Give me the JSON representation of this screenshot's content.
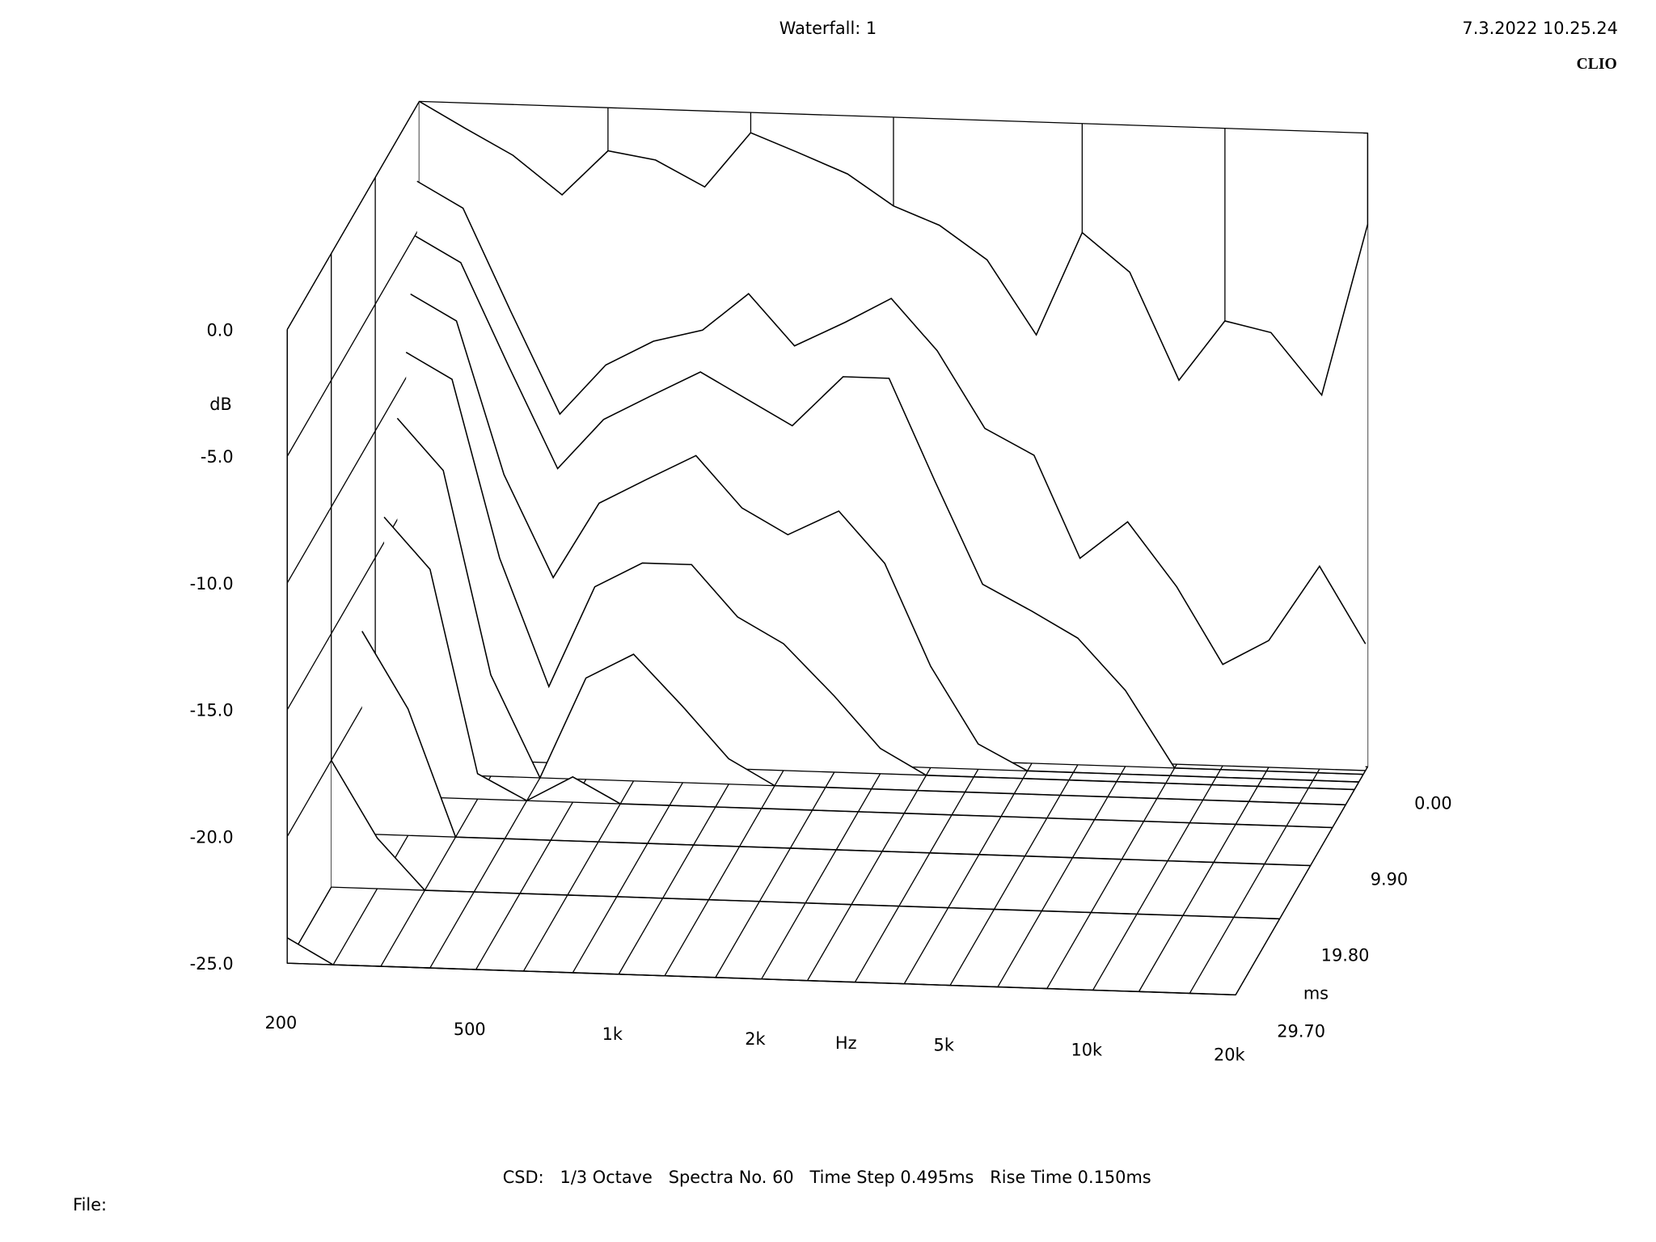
{
  "chart_data": {
    "type": "waterfall",
    "title": "Waterfall: 1",
    "timestamp": "7.3.2022 10.25.24",
    "brand": "CLIO",
    "footer": "CSD:   1/3 Octave   Spectra No. 60   Time Step 0.495ms   Rise Time 0.150ms",
    "file_label": "File:",
    "y_label": "dB",
    "x_label": "Hz",
    "z_label": "ms",
    "color": "#000000",
    "x_scale": "log",
    "xlim": [
      200,
      20000
    ],
    "xticks": [
      200,
      500,
      {
        "value": 1000,
        "label": "1k"
      },
      {
        "value": 2000,
        "label": "2k"
      },
      {
        "value": 5000,
        "label": "5k"
      },
      {
        "value": 10000,
        "label": "10k"
      },
      {
        "value": 20000,
        "label": "20k"
      }
    ],
    "ylim": [
      -25,
      0
    ],
    "yticks": [
      {
        "value": 0,
        "label": "0.0"
      },
      {
        "value": -5,
        "label": "-5.0"
      },
      {
        "value": -10,
        "label": "-10.0"
      },
      {
        "value": -15,
        "label": "-15.0"
      },
      {
        "value": -20,
        "label": "-20.0"
      },
      {
        "value": -25,
        "label": "-25.0"
      }
    ],
    "zlim": [
      0,
      29.7
    ],
    "zticks": [
      {
        "value": 0,
        "label": "0.00"
      },
      {
        "value": 9.9,
        "label": "9.90"
      },
      {
        "value": 19.8,
        "label": "19.80"
      },
      {
        "value": 29.7,
        "label": "29.70"
      }
    ],
    "x": [
      200,
      250,
      315,
      400,
      500,
      630,
      800,
      1000,
      1250,
      1600,
      2000,
      2500,
      3150,
      4000,
      5000,
      6300,
      8000,
      10000,
      12500,
      16000,
      20000
    ],
    "slices": [
      {
        "time": 0,
        "values": [
          0,
          -1,
          -2,
          -3.5,
          -1.7,
          -2,
          -3,
          -0.8,
          -1.5,
          -2.3,
          -3.5,
          -4.2,
          -5.5,
          -8.4,
          -4.3,
          -5.8,
          -10,
          -7.6,
          -8,
          -10.4,
          -3.6
        ]
      },
      {
        "time": 0.495,
        "values": [
          -3,
          -4,
          -8,
          -12,
          -10,
          -9,
          -8.5,
          -7,
          -9,
          -8,
          -7,
          -9,
          -12,
          -13,
          -17,
          -15.5,
          -18,
          -21,
          -20,
          -17,
          -20
        ]
      },
      {
        "time": 0.99,
        "values": [
          -5,
          -6,
          -10,
          -14,
          -12,
          -11,
          -10,
          -11,
          -12,
          -10,
          -10,
          -14,
          -18,
          -19,
          -20,
          -22,
          -25,
          -25,
          -25,
          -25,
          -25
        ]
      },
      {
        "time": 1.98,
        "values": [
          -7,
          -8,
          -14,
          -18,
          -15,
          -14,
          -13,
          -15,
          -16,
          -15,
          -17,
          -21,
          -24,
          -25,
          -25,
          -25,
          -25,
          -25,
          -25,
          -25,
          -25
        ]
      },
      {
        "time": 2.97,
        "values": [
          -9,
          -10,
          -17,
          -22,
          -18,
          -17,
          -17,
          -19,
          -20,
          -22,
          -24,
          -25,
          -25,
          -25,
          -25,
          -25,
          -25,
          -25,
          -25,
          -25,
          -25
        ]
      },
      {
        "time": 4.95,
        "values": [
          -11,
          -13,
          -21,
          -25,
          -21,
          -20,
          -22,
          -24,
          -25,
          -25,
          -25,
          -25,
          -25,
          -25,
          -25,
          -25,
          -25,
          -25,
          -25,
          -25,
          -25
        ]
      },
      {
        "time": 7.92,
        "values": [
          -14,
          -16,
          -24,
          -25,
          -24,
          -25,
          -25,
          -25,
          -25,
          -25,
          -25,
          -25,
          -25,
          -25,
          -25,
          -25,
          -25,
          -25,
          -25,
          -25,
          -25
        ]
      },
      {
        "time": 12.87,
        "values": [
          -17,
          -20,
          -25,
          -25,
          -25,
          -25,
          -25,
          -25,
          -25,
          -25,
          -25,
          -25,
          -25,
          -25,
          -25,
          -25,
          -25,
          -25,
          -25,
          -25,
          -25
        ]
      },
      {
        "time": 19.8,
        "values": [
          -20,
          -23,
          -25,
          -25,
          -25,
          -25,
          -25,
          -25,
          -25,
          -25,
          -25,
          -25,
          -25,
          -25,
          -25,
          -25,
          -25,
          -25,
          -25,
          -25,
          -25
        ]
      },
      {
        "time": 29.7,
        "values": [
          -24,
          -25,
          -25,
          -25,
          -25,
          -25,
          -25,
          -25,
          -25,
          -25,
          -25,
          -25,
          -25,
          -25,
          -25,
          -25,
          -25,
          -25,
          -25,
          -25,
          -25
        ]
      }
    ]
  }
}
